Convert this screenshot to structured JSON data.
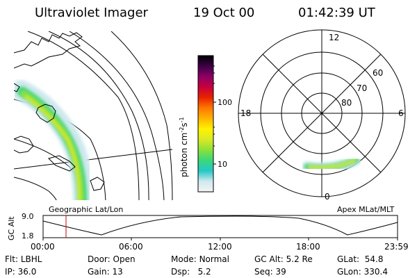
{
  "header": {
    "instrument": "Ultraviolet Imager",
    "date": "19 Oct 00",
    "time": "01:42:39 UT"
  },
  "colorbar": {
    "label_prefix": "photon cm",
    "label_exp1": "-2",
    "label_mid": "s",
    "label_exp2": "-1",
    "tick_labels": [
      "100",
      "10"
    ],
    "gradient": [
      "#f4f4f4",
      "#cfe9ee",
      "#25c8c8",
      "#3ad87a",
      "#8ce03a",
      "#d9ea24",
      "#fff200",
      "#ffb400",
      "#ff7800",
      "#e82200",
      "#c8003c",
      "#8c0064",
      "#3c0046",
      "#000000"
    ]
  },
  "polar_plot": {
    "mlt_labels": {
      "top": "12",
      "left": "18",
      "right": "6",
      "bottom": "0"
    },
    "lat_labels": [
      "60",
      "70",
      "80"
    ]
  },
  "map_caption": "Geographic Lat/Lon",
  "polar_caption": "Apex MLat/MLT",
  "altitude_plot": {
    "axis_title": "GC Alt",
    "y_ticks": [
      "9.0",
      "1.8"
    ],
    "x_ticks": [
      "00:00",
      "06:00",
      "12:00",
      "18:00",
      "23:59"
    ],
    "marker_color": "#cc0000"
  },
  "footer": {
    "col1": [
      {
        "key": "Flt:",
        "val": "LBHL"
      },
      {
        "key": "IP:",
        "val": "36.0"
      }
    ],
    "col2": [
      {
        "key": "Door:",
        "val": "Open"
      },
      {
        "key": "Gain:",
        "val": "13"
      }
    ],
    "col3": [
      {
        "key": "Mode:",
        "val": "Normal"
      },
      {
        "key": "Dsp:",
        "val": "5.2"
      }
    ],
    "col4": [
      {
        "key": "GC Alt:",
        "val": "5.2 Re"
      },
      {
        "key": "Seq:",
        "val": "39"
      }
    ],
    "col5": [
      {
        "key": "GLat:",
        "val": "54.8"
      },
      {
        "key": "GLon:",
        "val": "330.4"
      }
    ]
  }
}
